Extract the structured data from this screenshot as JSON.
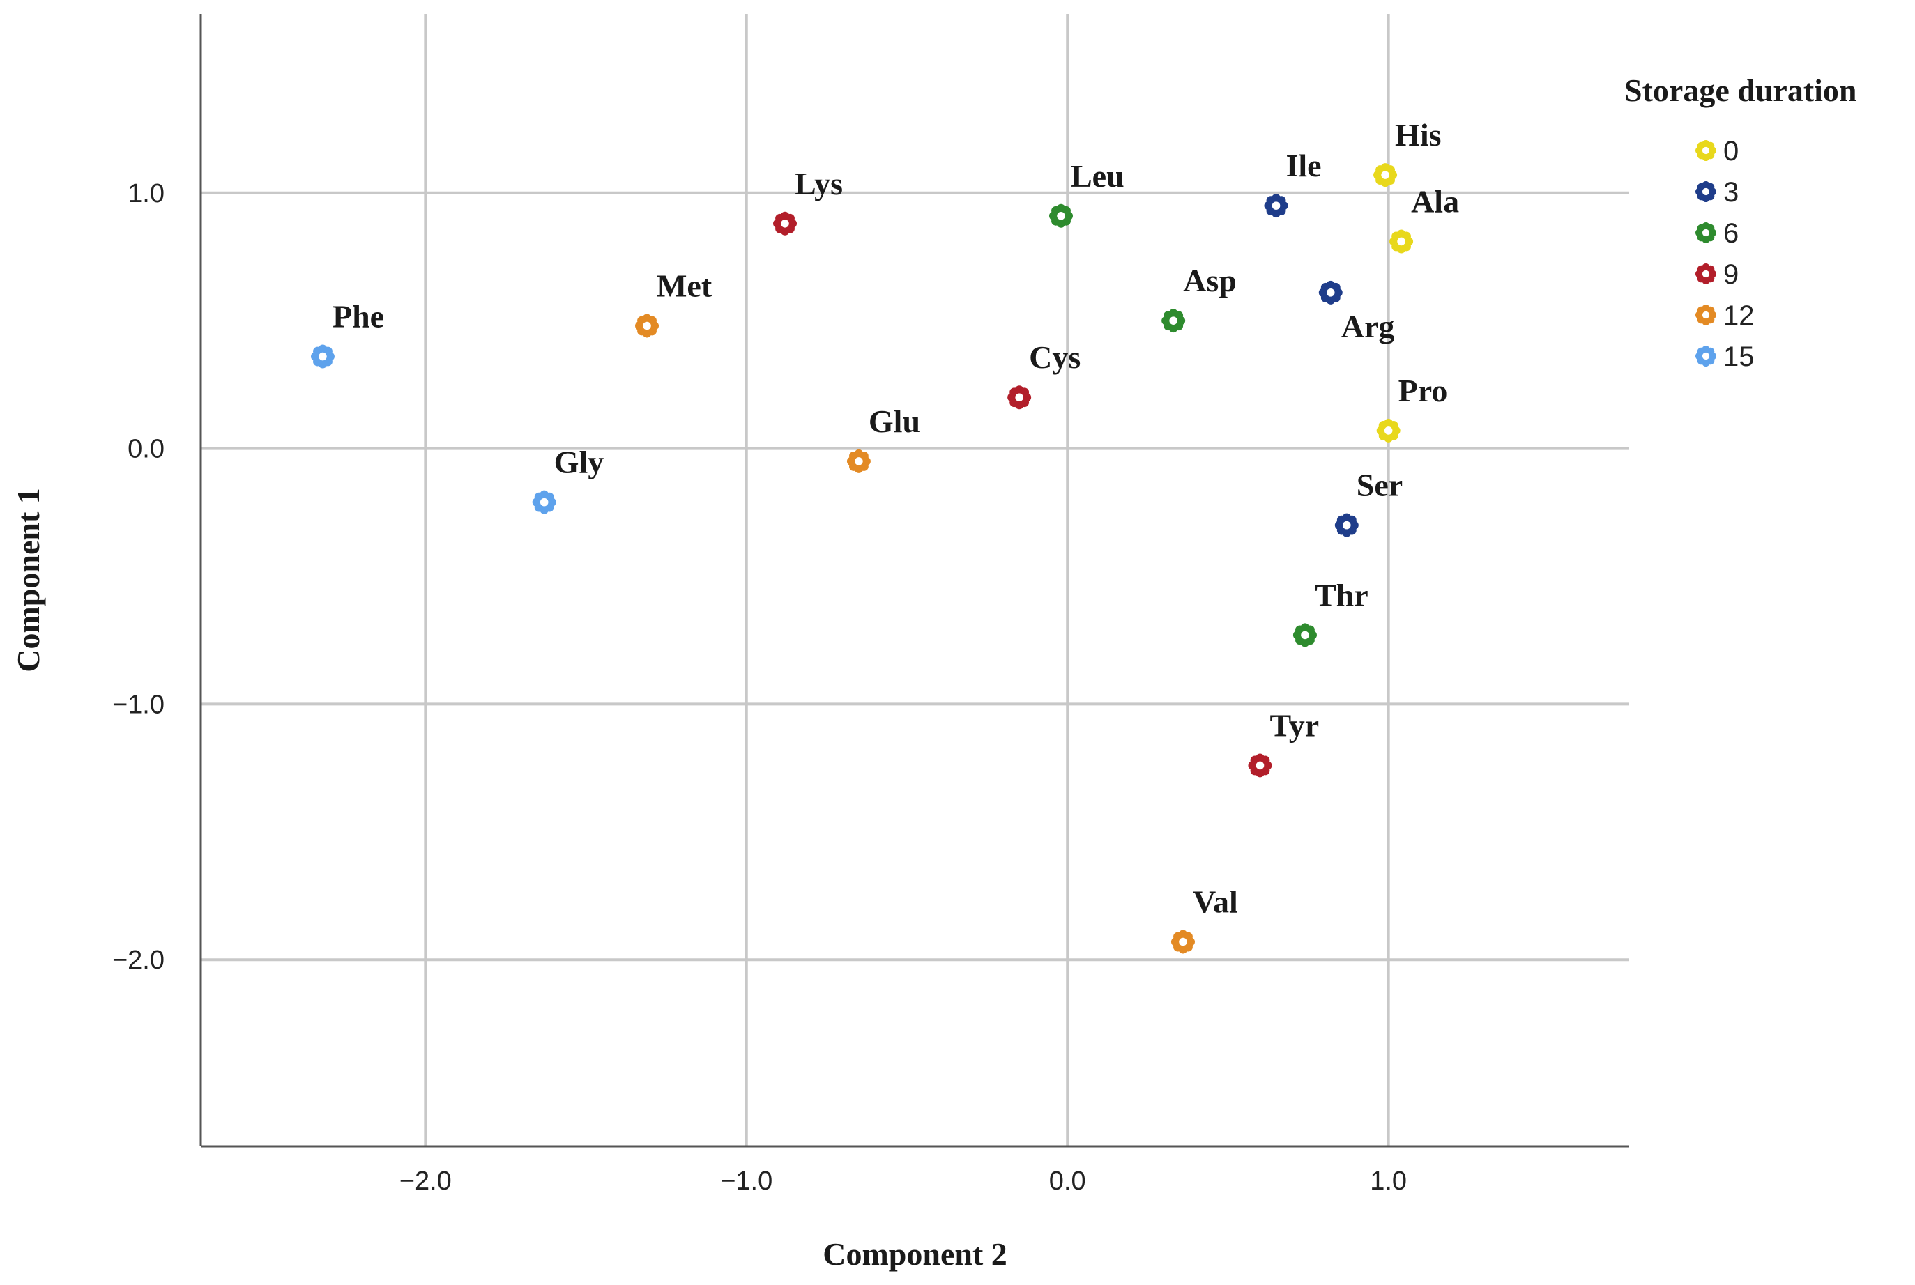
{
  "chart_data": {
    "type": "scatter",
    "xlabel": "Component 2",
    "ylabel": "Component 1",
    "xlim": [
      -2.7,
      1.75
    ],
    "ylim": [
      -2.73,
      1.7
    ],
    "x_ticks": [
      -2.0,
      -1.0,
      0.0,
      1.0
    ],
    "y_ticks": [
      -2.0,
      -1.0,
      0.0,
      1.0
    ],
    "x_tick_labels": [
      "−2.0",
      "−1.0",
      "0.0",
      "1.0"
    ],
    "y_tick_labels": [
      "−2.0",
      "−1.0",
      "0.0",
      "1.0"
    ],
    "grid": true,
    "legend": {
      "title": "Storage duration",
      "placement": "top-right",
      "entries": [
        {
          "label": "0",
          "color": "#e8d81c"
        },
        {
          "label": "3",
          "color": "#1f3d8a"
        },
        {
          "label": "6",
          "color": "#2e8b2e"
        },
        {
          "label": "9",
          "color": "#b21e2a"
        },
        {
          "label": "12",
          "color": "#e38a24"
        },
        {
          "label": "15",
          "color": "#5ea2ec"
        }
      ]
    },
    "points": [
      {
        "label": "His",
        "group": "0",
        "x": 0.99,
        "y": 1.07,
        "label_pos": "above-right"
      },
      {
        "label": "Ala",
        "group": "0",
        "x": 1.04,
        "y": 0.81,
        "label_pos": "above-right"
      },
      {
        "label": "Pro",
        "group": "0",
        "x": 1.0,
        "y": 0.07,
        "label_pos": "above-right"
      },
      {
        "label": "Ile",
        "group": "3",
        "x": 0.65,
        "y": 0.95,
        "label_pos": "above-right"
      },
      {
        "label": "Arg",
        "group": "3",
        "x": 0.82,
        "y": 0.61,
        "label_pos": "below-right"
      },
      {
        "label": "Ser",
        "group": "3",
        "x": 0.87,
        "y": -0.3,
        "label_pos": "above-right"
      },
      {
        "label": "Leu",
        "group": "6",
        "x": -0.02,
        "y": 0.91,
        "label_pos": "above-right"
      },
      {
        "label": "Asp",
        "group": "6",
        "x": 0.33,
        "y": 0.5,
        "label_pos": "above-right"
      },
      {
        "label": "Thr",
        "group": "6",
        "x": 0.74,
        "y": -0.73,
        "label_pos": "above-right"
      },
      {
        "label": "Lys",
        "group": "9",
        "x": -0.88,
        "y": 0.88,
        "label_pos": "above-right"
      },
      {
        "label": "Cys",
        "group": "9",
        "x": -0.15,
        "y": 0.2,
        "label_pos": "above-right"
      },
      {
        "label": "Tyr",
        "group": "9",
        "x": 0.6,
        "y": -1.24,
        "label_pos": "above-right"
      },
      {
        "label": "Met",
        "group": "12",
        "x": -1.31,
        "y": 0.48,
        "label_pos": "above-right"
      },
      {
        "label": "Glu",
        "group": "12",
        "x": -0.65,
        "y": -0.05,
        "label_pos": "above-right"
      },
      {
        "label": "Val",
        "group": "12",
        "x": 0.36,
        "y": -1.93,
        "label_pos": "above-right"
      },
      {
        "label": "Phe",
        "group": "15",
        "x": -2.32,
        "y": 0.36,
        "label_pos": "above-right"
      },
      {
        "label": "Gly",
        "group": "15",
        "x": -1.63,
        "y": -0.21,
        "label_pos": "above-right"
      }
    ]
  }
}
